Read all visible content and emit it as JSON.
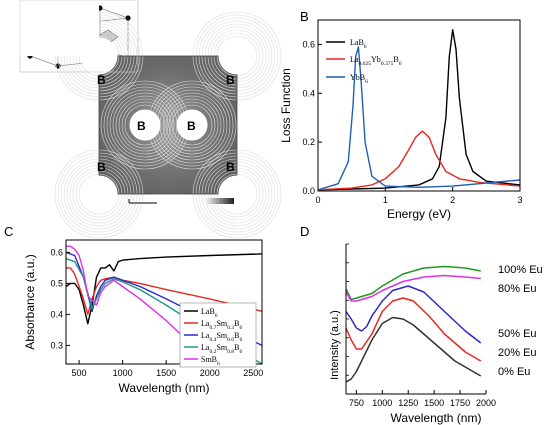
{
  "panels": {
    "A": {
      "letter": "A",
      "atom_labels": [
        "B",
        "B",
        "B",
        "B",
        "B",
        "B"
      ]
    },
    "B": {
      "letter": "B",
      "chart_data": {
        "type": "line",
        "xlabel": "Energy (eV)",
        "ylabel": "Loss Function",
        "xlim": [
          0,
          3
        ],
        "ylim": [
          0,
          0.7
        ],
        "xticks": [
          "0",
          "1",
          "2",
          "3"
        ],
        "yticks": [
          "0.0",
          "0.2",
          "0.4",
          "0.6"
        ],
        "legend": "top-left",
        "series": [
          {
            "name": "LaB6",
            "legend_parts": [
              "LaB",
              "6"
            ],
            "color": "#000000",
            "x": [
              0,
              0.5,
              1.0,
              1.5,
              1.7,
              1.8,
              1.9,
              1.95,
              2.0,
              2.05,
              2.1,
              2.2,
              2.3,
              2.5,
              3.0
            ],
            "y": [
              0.005,
              0.008,
              0.012,
              0.025,
              0.05,
              0.1,
              0.3,
              0.55,
              0.66,
              0.58,
              0.38,
              0.15,
              0.08,
              0.04,
              0.025
            ]
          },
          {
            "name": "La0.625Yb0.375B6",
            "legend_parts": [
              "La",
              "0.625",
              "Yb",
              "0.375",
              "B",
              "6"
            ],
            "color": "#e8281e",
            "x": [
              0,
              0.5,
              0.8,
              1.0,
              1.2,
              1.35,
              1.45,
              1.55,
              1.65,
              1.75,
              1.9,
              2.1,
              2.4,
              3.0
            ],
            "y": [
              0.005,
              0.012,
              0.025,
              0.05,
              0.1,
              0.17,
              0.22,
              0.245,
              0.22,
              0.15,
              0.08,
              0.05,
              0.035,
              0.02
            ]
          },
          {
            "name": "YbB6",
            "legend_parts": [
              "YbB",
              "6"
            ],
            "color": "#1f5fb4",
            "x": [
              0,
              0.3,
              0.45,
              0.52,
              0.56,
              0.6,
              0.64,
              0.7,
              0.8,
              1.0,
              1.5,
              2.0,
              3.0
            ],
            "y": [
              0.005,
              0.03,
              0.12,
              0.35,
              0.55,
              0.59,
              0.45,
              0.2,
              0.06,
              0.02,
              0.015,
              0.02,
              0.045
            ]
          }
        ]
      }
    },
    "C": {
      "letter": "C",
      "chart_data": {
        "type": "line",
        "xlabel": "Wavelength (nm)",
        "ylabel": "Absorbance (a.u.)",
        "xlim": [
          350,
          2600
        ],
        "ylim": [
          0.24,
          0.64
        ],
        "xticks": [
          "500",
          "1000",
          "1500",
          "2000",
          "2500"
        ],
        "yticks": [
          "0.3",
          "0.4",
          "0.5",
          "0.6"
        ],
        "legend": "right",
        "series": [
          {
            "name": "LaB6",
            "legend_parts": [
              "LaB",
              "6"
            ],
            "color": "#000000",
            "x": [
              350,
              400,
              450,
              500,
              550,
              600,
              650,
              700,
              750,
              800,
              850,
              900,
              950,
              1000,
              1200,
              1500,
              2000,
              2600
            ],
            "y": [
              0.49,
              0.5,
              0.5,
              0.48,
              0.43,
              0.37,
              0.43,
              0.52,
              0.55,
              0.55,
              0.56,
              0.54,
              0.57,
              0.575,
              0.58,
              0.585,
              0.59,
              0.595
            ]
          },
          {
            "name": "La0.7Sm0.3B6",
            "legend_parts": [
              "La",
              "0.7",
              "Sm",
              "0.3",
              "B",
              "6"
            ],
            "color": "#e8281e",
            "x": [
              350,
              400,
              450,
              500,
              550,
              600,
              650,
              700,
              750,
              800,
              900,
              1000,
              1200,
              1500,
              2000,
              2600
            ],
            "y": [
              0.55,
              0.55,
              0.53,
              0.49,
              0.45,
              0.4,
              0.45,
              0.49,
              0.51,
              0.515,
              0.52,
              0.51,
              0.5,
              0.48,
              0.45,
              0.41
            ]
          },
          {
            "name": "La0.4Sm0.6B6",
            "legend_parts": [
              "La",
              "0.4",
              "Sm",
              "0.6",
              "B",
              "6"
            ],
            "color": "#2a2ac8",
            "x": [
              350,
              450,
              550,
              650,
              700,
              750,
              800,
              900,
              1000,
              1200,
              1500,
              2000,
              2600
            ],
            "y": [
              0.6,
              0.59,
              0.52,
              0.41,
              0.46,
              0.49,
              0.51,
              0.52,
              0.51,
              0.49,
              0.45,
              0.38,
              0.3
            ]
          },
          {
            "name": "La0.2Sm0.8B6",
            "legend_parts": [
              "La",
              "0.2",
              "Sm",
              "0.8",
              "B",
              "6"
            ],
            "color": "#1a9a8a",
            "x": [
              350,
              450,
              550,
              650,
              700,
              750,
              800,
              900,
              1000,
              1200,
              1500,
              2000,
              2600
            ],
            "y": [
              0.58,
              0.57,
              0.52,
              0.42,
              0.45,
              0.48,
              0.5,
              0.515,
              0.505,
              0.48,
              0.43,
              0.34,
              0.24
            ]
          },
          {
            "name": "SmB6",
            "legend_parts": [
              "SmB",
              "6"
            ],
            "color": "#e030e8",
            "x": [
              350,
              400,
              450,
              500,
              550,
              600,
              700,
              750,
              800,
              900,
              1000,
              1200,
              1500,
              1800,
              2000
            ],
            "y": [
              0.62,
              0.62,
              0.61,
              0.59,
              0.54,
              0.46,
              0.43,
              0.47,
              0.49,
              0.51,
              0.49,
              0.45,
              0.38,
              0.3,
              0.24
            ]
          }
        ]
      }
    },
    "D": {
      "letter": "D",
      "chart_data": {
        "type": "line",
        "xlabel": "Wavelength (nm)",
        "ylabel": "Intensity (a.u.)",
        "xlim": [
          650,
          2000
        ],
        "ylim": [
          0,
          1
        ],
        "xticks": [
          "750",
          "1000",
          "1250",
          "1500",
          "1750",
          "2000"
        ],
        "legend": "right",
        "series": [
          {
            "name": "100% Eu",
            "color": "#1e9a1e",
            "x": [
              650,
              700,
              750,
              800,
              900,
              1000,
              1200,
              1400,
              1600,
              1800,
              1950
            ],
            "y": [
              0.7,
              0.63,
              0.64,
              0.65,
              0.67,
              0.72,
              0.8,
              0.84,
              0.85,
              0.84,
              0.82
            ]
          },
          {
            "name": "80% Eu",
            "color": "#e030e8",
            "x": [
              650,
              700,
              750,
              800,
              900,
              1000,
              1200,
              1400,
              1600,
              1800,
              1950
            ],
            "y": [
              0.68,
              0.62,
              0.62,
              0.63,
              0.65,
              0.69,
              0.75,
              0.78,
              0.79,
              0.78,
              0.77
            ]
          },
          {
            "name": "50% Eu",
            "color": "#2a2ac8",
            "x": [
              650,
              700,
              750,
              800,
              850,
              900,
              1000,
              1100,
              1250,
              1400,
              1600,
              1800,
              1950
            ],
            "y": [
              0.55,
              0.5,
              0.44,
              0.42,
              0.45,
              0.52,
              0.62,
              0.69,
              0.72,
              0.68,
              0.55,
              0.42,
              0.34
            ]
          },
          {
            "name": "20% Eu",
            "color": "#e8281e",
            "x": [
              650,
              700,
              750,
              800,
              900,
              1000,
              1100,
              1200,
              1300,
              1450,
              1600,
              1800,
              1950
            ],
            "y": [
              0.44,
              0.36,
              0.3,
              0.3,
              0.4,
              0.55,
              0.62,
              0.64,
              0.62,
              0.52,
              0.4,
              0.28,
              0.22
            ]
          },
          {
            "name": "0% Eu",
            "color": "#333333",
            "x": [
              650,
              700,
              750,
              800,
              900,
              1000,
              1100,
              1200,
              1300,
              1500,
              1700,
              1950
            ],
            "y": [
              0.08,
              0.1,
              0.15,
              0.22,
              0.36,
              0.47,
              0.51,
              0.5,
              0.46,
              0.34,
              0.22,
              0.12
            ]
          }
        ]
      }
    }
  }
}
